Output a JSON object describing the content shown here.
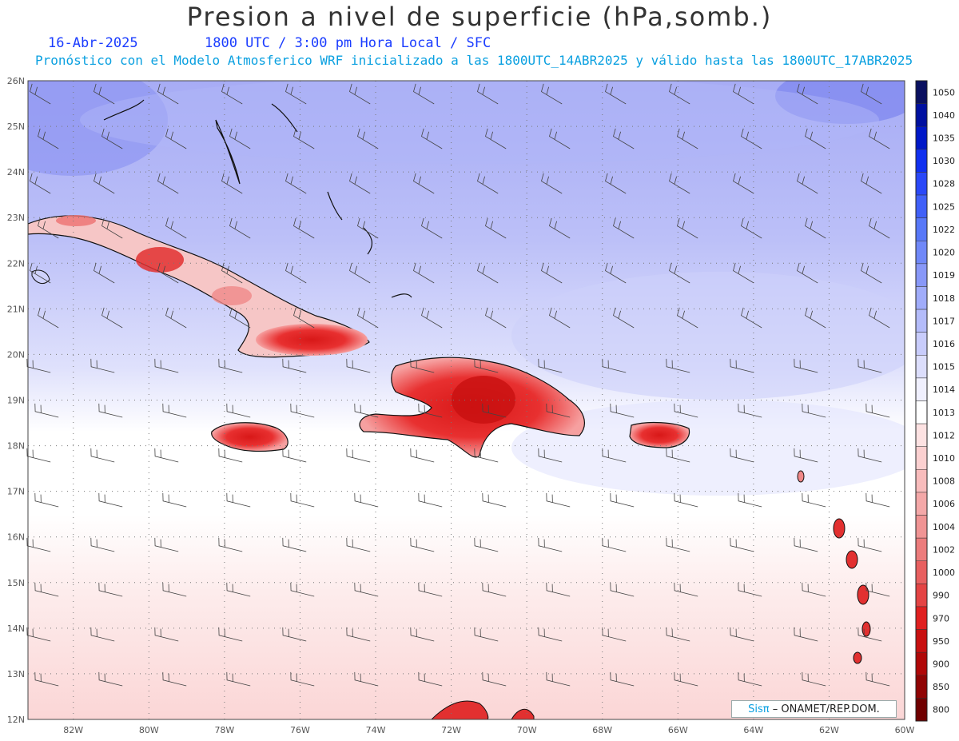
{
  "header": {
    "title": "Presion a nivel de superficie (hPa,somb.)",
    "date": "16-Abr-2025",
    "time": "1800 UTC / 3:00 pm Hora Local / SFC",
    "forecast": "Pronóstico con el Modelo Atmosferico WRF inicializado a las 1800UTC_14ABR2025 y válido hasta las  1800UTC_17ABR2025"
  },
  "map": {
    "lat_labels": [
      "26N",
      "25N",
      "24N",
      "23N",
      "22N",
      "21N",
      "20N",
      "19N",
      "18N",
      "17N",
      "16N",
      "15N",
      "14N",
      "13N",
      "12N"
    ],
    "lon_labels": [
      "82W",
      "80W",
      "78W",
      "76W",
      "74W",
      "72W",
      "70W",
      "68W",
      "66W",
      "64W",
      "62W",
      "60W"
    ],
    "lat_range": [
      12,
      26
    ],
    "lon_range": [
      -83.2,
      -60
    ]
  },
  "colorbar": {
    "levels": [
      "1050",
      "1040",
      "1035",
      "1030",
      "1028",
      "1025",
      "1022",
      "1020",
      "1019",
      "1018",
      "1017",
      "1016",
      "1015",
      "1014",
      "1013",
      "1012",
      "1010",
      "1008",
      "1006",
      "1004",
      "1002",
      "1000",
      "990",
      "970",
      "950",
      "900",
      "850",
      "800"
    ],
    "colors": [
      "#0a1060",
      "#0010a0",
      "#0018c8",
      "#1030f0",
      "#2a48f8",
      "#4060f8",
      "#5878f8",
      "#7088f8",
      "#8898f8",
      "#a0acfa",
      "#b4bcfa",
      "#c8ccfb",
      "#dcdefc",
      "#f0f0fe",
      "#ffffff",
      "#fde2e2",
      "#fbd0d0",
      "#f8bcbc",
      "#f4a8a8",
      "#f09494",
      "#ec7c7c",
      "#e86060",
      "#e44444",
      "#e02020",
      "#c81010",
      "#b00808",
      "#900404",
      "#700000"
    ]
  },
  "credit": {
    "org": "Sisπ",
    "text": "– ONAMET/REP.DOM."
  }
}
